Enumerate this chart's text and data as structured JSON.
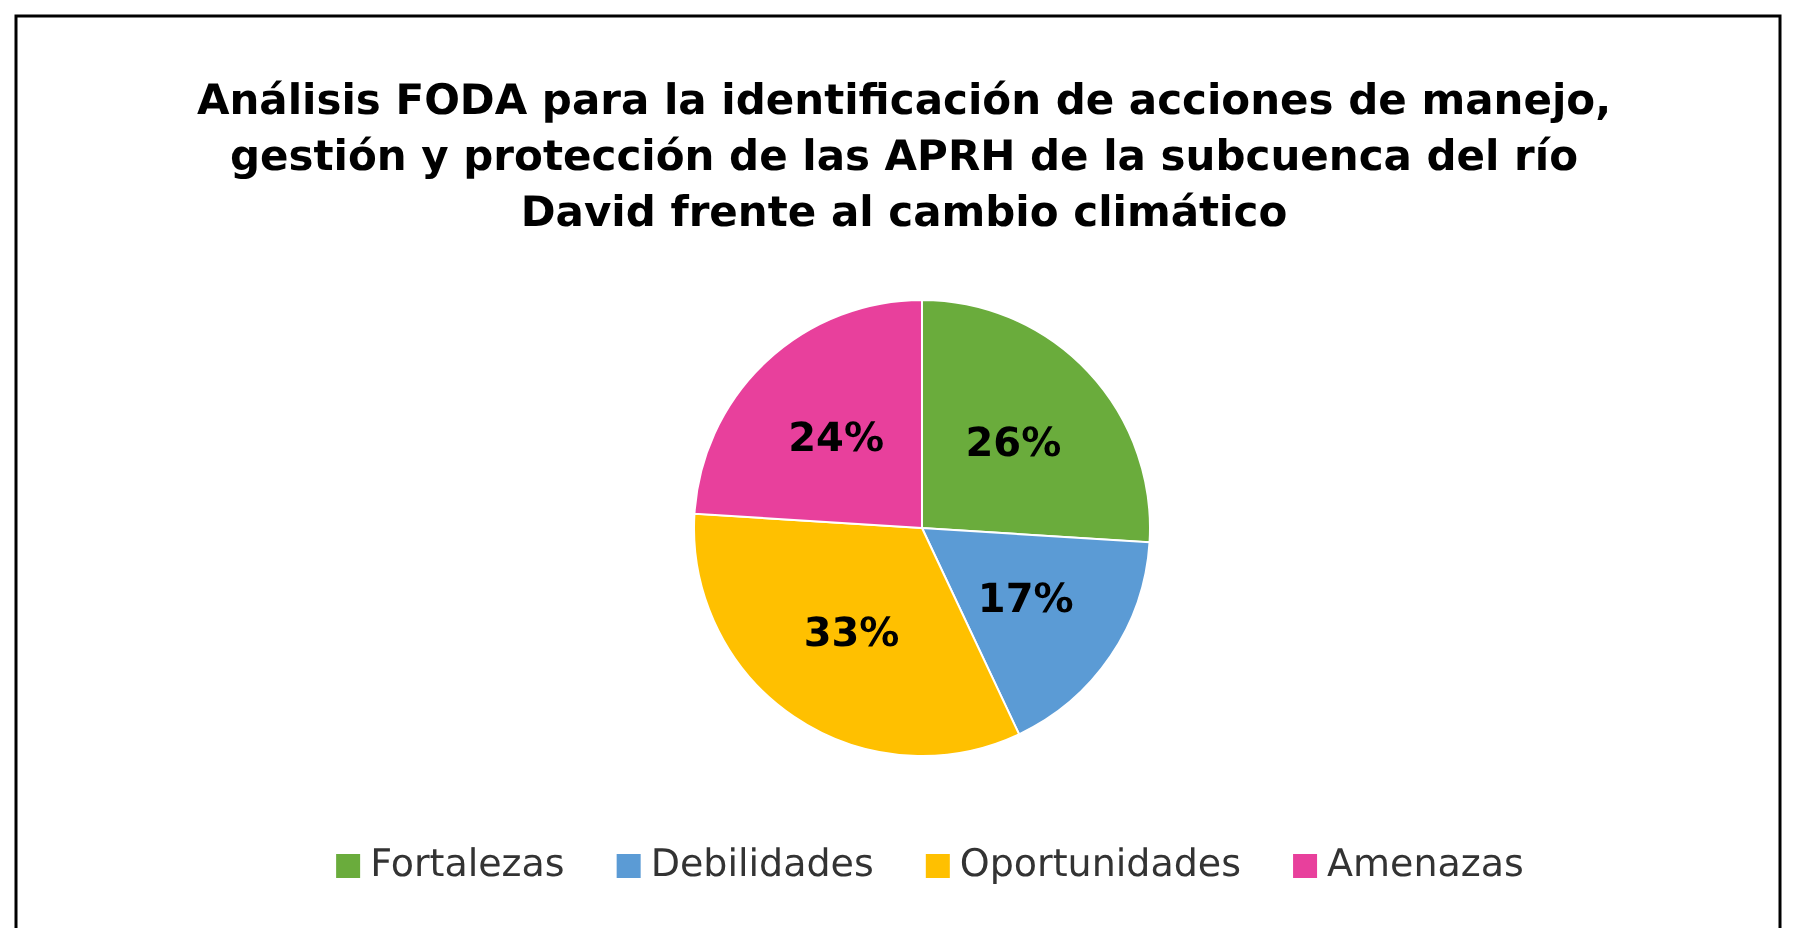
{
  "chart_data": {
    "type": "pie",
    "title": "Análisis FODA para la identificación de acciones de manejo, gestión y protección de las APRH de la subcuenca del río David frente al cambio climático",
    "categories": [
      "Fortalezas",
      "Debilidades",
      "Oportunidades",
      "Amenazas"
    ],
    "values": [
      26,
      17,
      33,
      24
    ],
    "colors": [
      "#6aac3c",
      "#5b9bd5",
      "#ffc000",
      "#e8409c"
    ],
    "value_labels": [
      "26%",
      "17%",
      "33%",
      "24%"
    ],
    "legend": "bottom"
  }
}
